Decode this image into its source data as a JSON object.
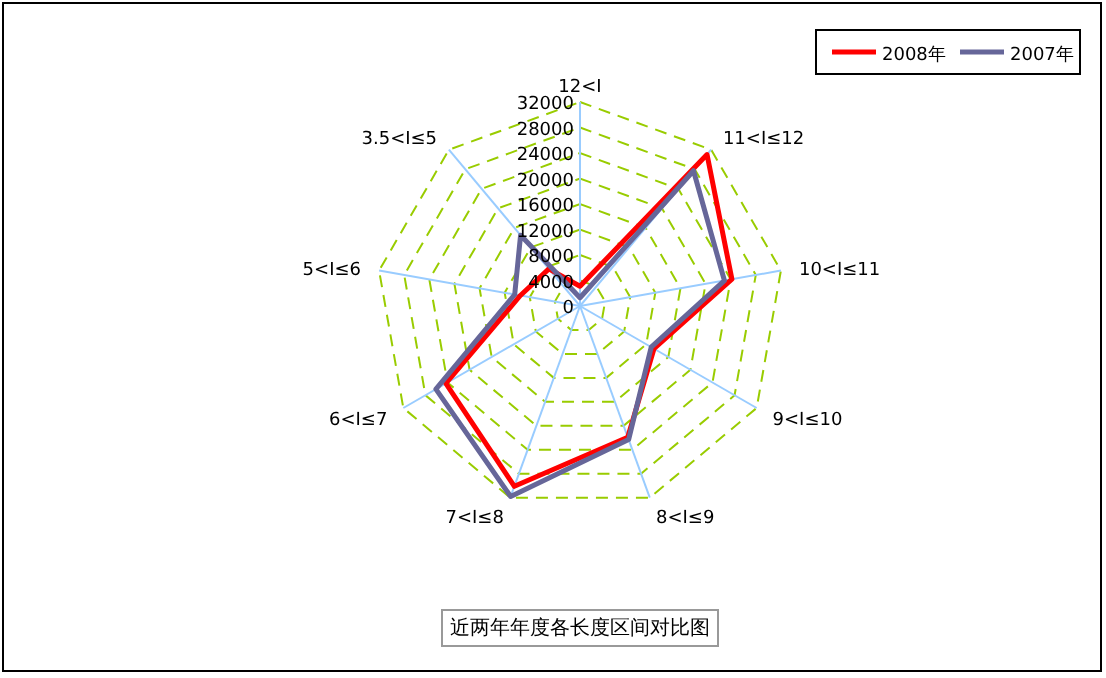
{
  "chart_data": {
    "type": "radar",
    "title": "近两年年度各长度区间对比图",
    "categories": [
      "12<I",
      "11<I≤12",
      "10<I≤11",
      "9<I≤10",
      "8<I≤9",
      "7<I≤8",
      "6<I≤7",
      "5<I≤6",
      "3.5<I≤5"
    ],
    "series": [
      {
        "name": "2008年",
        "color": "#ff0000",
        "values": [
          3100,
          31000,
          24200,
          13400,
          21900,
          30100,
          24300,
          9500,
          7600
        ]
      },
      {
        "name": "2007年",
        "color": "#666699",
        "values": [
          1300,
          27700,
          23000,
          12900,
          22300,
          31800,
          26100,
          10400,
          14500
        ]
      }
    ],
    "ylim": [
      0,
      32000
    ],
    "yticks": [
      0,
      4000,
      8000,
      12000,
      16000,
      20000,
      24000,
      28000,
      32000
    ],
    "grid": true,
    "legend": "top right"
  }
}
